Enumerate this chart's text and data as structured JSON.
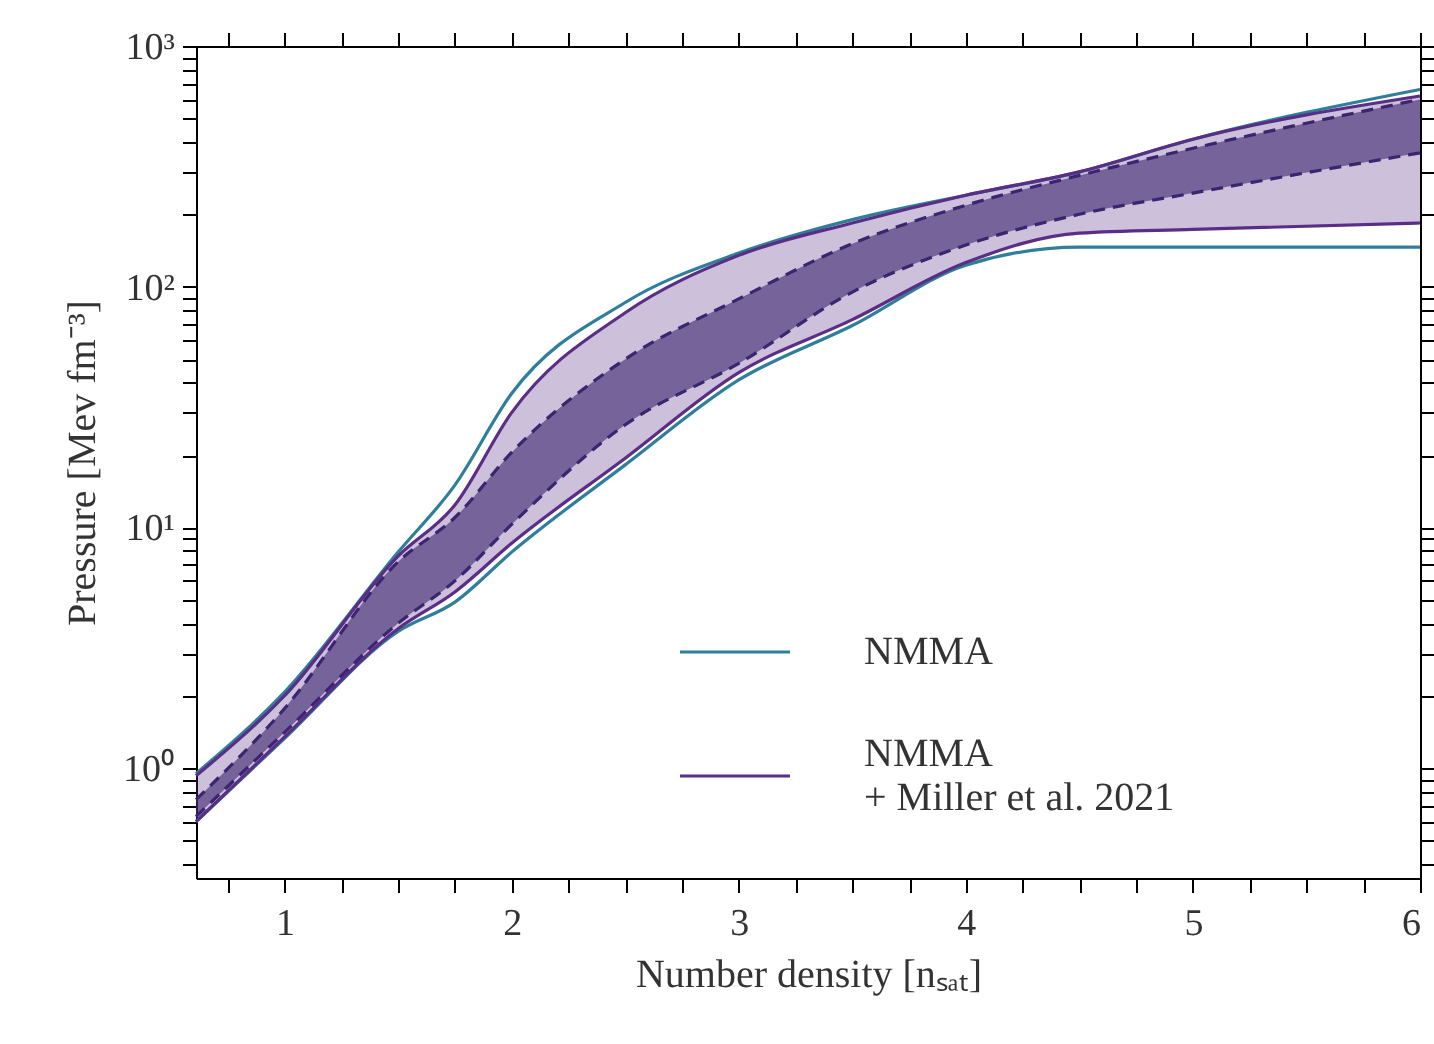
{
  "chart_data": {
    "type": "line",
    "xlabel": "Number density [nₛₐₜ]",
    "ylabel": "Pressure [Mev fm⁻³]",
    "x": [
      0.61,
      1,
      1.5,
      1.75,
      2,
      2.5,
      3,
      3.5,
      4,
      4.5,
      5,
      6
    ],
    "series": [
      {
        "name": "NMMA",
        "color": "#2f7f9a",
        "values": [
          0.95,
          2.07,
          7.9,
          15,
          36,
          86,
          138,
          190,
          240,
          300,
          410,
          660
        ]
      },
      {
        "color": "#2f7f9a",
        "values": [
          0.6,
          1.33,
          3.7,
          4.9,
          7.9,
          18.2,
          41,
          69,
          123,
          146,
          146,
          146
        ]
      },
      {
        "name": "NMMA\n+ Miller et al. 2021",
        "color": "#5a2d86",
        "values": [
          0.93,
          2.0,
          7.6,
          12.4,
          30,
          78,
          135,
          184,
          240,
          300,
          410,
          620
        ],
        "lower": [
          0.6,
          1.35,
          3.8,
          5.4,
          8.6,
          19.4,
          44,
          73,
          126,
          167,
          173,
          184
        ],
        "upper": [
          0.93,
          2.0,
          7.6,
          12.4,
          30,
          78,
          135,
          184,
          240,
          300,
          410,
          620
        ]
      },
      {
        "color": "#5a2d86",
        "values": [
          0.6,
          1.35,
          3.8,
          5.4,
          8.6,
          19.4,
          44,
          73,
          126,
          167,
          173,
          184
        ]
      },
      {
        "color": "#3b2470",
        "line_style": "dashed",
        "values": [
          0.74,
          1.77,
          7.2,
          11,
          20.5,
          50,
          89,
          151,
          218,
          290,
          376,
          600
        ],
        "lower": [
          0.63,
          1.41,
          4.0,
          6,
          10.3,
          26.7,
          48,
          95,
          149,
          200,
          245,
          360
        ],
        "upper": [
          0.74,
          1.77,
          7.2,
          11,
          20.5,
          50,
          89,
          151,
          218,
          290,
          376,
          600
        ]
      },
      {
        "color": "#3b2470",
        "line_style": "dashed",
        "values": [
          0.63,
          1.41,
          4.0,
          6,
          10.3,
          26.7,
          48,
          95,
          149,
          200,
          245,
          360
        ]
      }
    ],
    "xlim": [
      0.61,
      6
    ],
    "xticks": [
      {
        "value": 0.75,
        "label": null
      },
      1,
      {
        "value": 1.25,
        "label": null
      },
      {
        "value": 1.5,
        "label": null
      },
      {
        "value": 1.75,
        "label": null
      },
      2,
      {
        "value": 2.25,
        "label": null
      },
      {
        "value": 2.5,
        "label": null
      },
      {
        "value": 2.75,
        "label": null
      },
      3,
      {
        "value": 3.25,
        "label": null
      },
      {
        "value": 3.5,
        "label": null
      },
      {
        "value": 3.75,
        "label": null
      },
      4,
      {
        "value": 4.25,
        "label": null
      },
      {
        "value": 4.5,
        "label": null
      },
      {
        "value": 4.75,
        "label": null
      },
      5,
      {
        "value": 5.25,
        "label": null
      },
      {
        "value": 5.5,
        "label": null
      },
      {
        "value": 5.75,
        "label": null
      },
      6
    ],
    "ylim": [
      0.35,
      1000
    ],
    "yticks": [
      {
        "value": 0.4,
        "label": null
      },
      {
        "value": 0.5,
        "label": null
      },
      {
        "value": 0.6,
        "label": null
      },
      {
        "value": 0.7,
        "label": null
      },
      {
        "value": 0.8,
        "label": null
      },
      {
        "value": 0.9,
        "label": null
      },
      {
        "value": 1,
        "label": "10⁰"
      },
      {
        "value": 2,
        "label": null
      },
      {
        "value": 3,
        "label": null
      },
      {
        "value": 4,
        "label": null
      },
      {
        "value": 5,
        "label": null
      },
      {
        "value": 6,
        "label": null
      },
      {
        "value": 7,
        "label": null
      },
      {
        "value": 8,
        "label": null
      },
      {
        "value": 9,
        "label": null
      },
      {
        "value": 10,
        "label": "10¹"
      },
      {
        "value": 20,
        "label": null
      },
      {
        "value": 30,
        "label": null
      },
      {
        "value": 40,
        "label": null
      },
      {
        "value": 50,
        "label": null
      },
      {
        "value": 60,
        "label": null
      },
      {
        "value": 70,
        "label": null
      },
      {
        "value": 80,
        "label": null
      },
      {
        "value": 90,
        "label": null
      },
      {
        "value": 100,
        "label": "10²"
      },
      {
        "value": 200,
        "label": null
      },
      {
        "value": 300,
        "label": null
      },
      {
        "value": 400,
        "label": null
      },
      {
        "value": 500,
        "label": null
      },
      {
        "value": 600,
        "label": null
      },
      {
        "value": 700,
        "label": null
      },
      {
        "value": 800,
        "label": null
      },
      {
        "value": 900,
        "label": null
      },
      {
        "value": 1000,
        "label": "10³"
      }
    ],
    "log": "y",
    "grid": false,
    "legend": "bottom right"
  }
}
